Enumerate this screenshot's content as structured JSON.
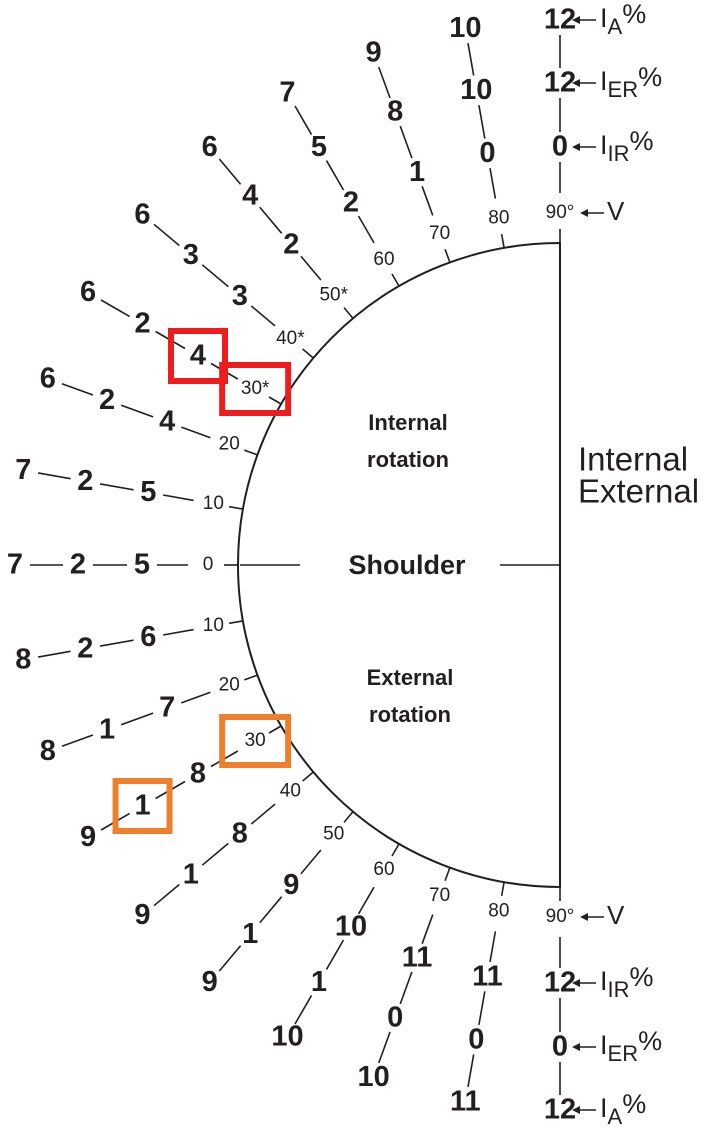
{
  "diagram": {
    "center_label": "Shoulder",
    "internal_label": [
      "Internal",
      "rotation"
    ],
    "external_label": [
      "External",
      "rotation"
    ],
    "vertical_label": "V",
    "side_notes": [
      {
        "text": "Internal",
        "color": "#e41a1a"
      },
      {
        "text": "External",
        "color": "#2e3192"
      }
    ],
    "series_labels": [
      {
        "main": "I",
        "sub": "IR",
        "suffix": "%"
      },
      {
        "main": "I",
        "sub": "ER",
        "suffix": "%"
      },
      {
        "main": "I",
        "sub": "A",
        "suffix": "%"
      }
    ],
    "internal_rays": [
      {
        "angle": "0",
        "values": [
          "5",
          "2",
          "7"
        ]
      },
      {
        "angle": "10",
        "values": [
          "5",
          "2",
          "7"
        ]
      },
      {
        "angle": "20",
        "values": [
          "4",
          "2",
          "6"
        ]
      },
      {
        "angle": "30*",
        "values": [
          "4",
          "2",
          "6"
        ]
      },
      {
        "angle": "40*",
        "values": [
          "3",
          "3",
          "6"
        ]
      },
      {
        "angle": "50*",
        "values": [
          "2",
          "4",
          "6"
        ]
      },
      {
        "angle": "60",
        "values": [
          "2",
          "5",
          "7"
        ]
      },
      {
        "angle": "70",
        "values": [
          "1",
          "8",
          "9"
        ]
      },
      {
        "angle": "80",
        "values": [
          "0",
          "10",
          "10"
        ]
      },
      {
        "angle": "90°",
        "values": [
          "0",
          "12",
          "12"
        ]
      }
    ],
    "external_rays": [
      {
        "angle": "10",
        "values": [
          "6",
          "2",
          "8"
        ]
      },
      {
        "angle": "20",
        "values": [
          "7",
          "1",
          "8"
        ]
      },
      {
        "angle": "30",
        "values": [
          "8",
          "1",
          "9"
        ]
      },
      {
        "angle": "40",
        "values": [
          "8",
          "1",
          "9"
        ]
      },
      {
        "angle": "50",
        "values": [
          "9",
          "1",
          "9"
        ]
      },
      {
        "angle": "60",
        "values": [
          "10",
          "1",
          "10"
        ]
      },
      {
        "angle": "70",
        "values": [
          "11",
          "0",
          "10"
        ]
      },
      {
        "angle": "80",
        "values": [
          "11",
          "0",
          "11"
        ]
      },
      {
        "angle": "90°",
        "values": [
          "12",
          "0",
          "12"
        ]
      }
    ],
    "highlights": [
      {
        "side": "internal",
        "ray": 3,
        "item": 0,
        "color": "#ee1c1c"
      },
      {
        "side": "internal",
        "ray": 3,
        "item": "angle",
        "color": "#ee1c1c"
      },
      {
        "side": "external",
        "ray": 2,
        "item": "angle",
        "color": "#ee7f2d"
      },
      {
        "side": "external",
        "ray": 2,
        "item": 1,
        "color": "#ee7f2d"
      }
    ]
  }
}
